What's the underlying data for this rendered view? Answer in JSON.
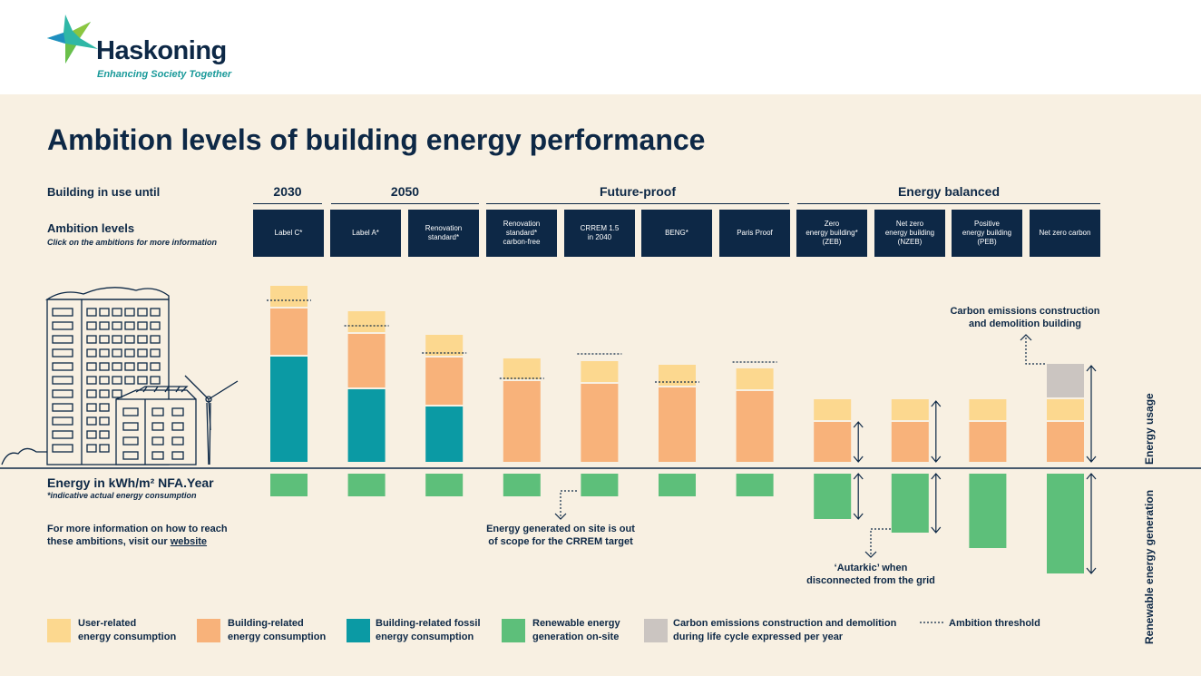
{
  "header": {
    "brand": "Haskoning",
    "tagline": "Enhancing Society Together"
  },
  "title": "Ambition levels of building energy performance",
  "row_labels": {
    "in_use": "Building in use until",
    "ambition": "Ambition levels",
    "ambition_sub": "Click on the ambitions for more information",
    "energy": "Energy in kWh/m² NFA.Year",
    "energy_sub": "*indicative actual energy consumption"
  },
  "info": {
    "text": "For more information on how to reach\nthese ambitions, visit our ",
    "link": "website"
  },
  "groups": [
    "2030",
    "2050",
    "Future-proof",
    "Energy balanced"
  ],
  "ambitions": [
    "Label C*",
    "Label A*",
    "Renovation\nstandard*",
    "Renovation\nstandard*\ncarbon-free",
    "CRREM 1.5\nin 2040",
    "BENG*",
    "Paris Proof",
    "Zero\nenergy building*\n(ZEB)",
    "Net zero\nenergy building\n(NZEB)",
    "Positive\nenergy building\n(PEB)",
    "Net zero carbon"
  ],
  "notes": {
    "carbon": "Carbon emissions construction\nand demolition building",
    "crrem": "Energy generated on site is out\nof scope for the CRREM target",
    "autarkic": "‘Autarkic’ when\ndisconnected from the grid"
  },
  "axis_labels": {
    "usage": "Energy usage",
    "generation": "Renewable energy generation"
  },
  "legend": [
    {
      "label": "User-related\nenergy consumption",
      "color": "#fcd88f"
    },
    {
      "label": "Building-related\nenergy consumption",
      "color": "#f8b27a"
    },
    {
      "label": "Building-related fossil\nenergy consumption",
      "color": "#0b9aa4"
    },
    {
      "label": "Renewable energy\ngeneration on-site",
      "color": "#5dbf7a"
    },
    {
      "label": "Carbon emissions construction and demolition\nduring life cycle expressed per year",
      "color": "#cbc5c1"
    },
    {
      "label": "Ambition threshold",
      "color": "#0d2846"
    }
  ],
  "chart_data": {
    "type": "bar",
    "categories": [
      "Label C*",
      "Label A*",
      "Renovation standard*",
      "Renovation standard* carbon-free",
      "CRREM 1.5 in 2040",
      "BENG*",
      "Paris Proof",
      "Zero energy building* (ZEB)",
      "Net zero energy building (NZEB)",
      "Positive energy building (PEB)",
      "Net zero carbon"
    ],
    "series": [
      {
        "name": "Building-related fossil energy consumption",
        "values": [
          116,
          80,
          61,
          0,
          0,
          0,
          0,
          0,
          0,
          0,
          0
        ]
      },
      {
        "name": "Building-related energy consumption",
        "values": [
          51,
          59,
          52,
          89,
          86,
          82,
          78,
          44,
          44,
          44,
          44
        ]
      },
      {
        "name": "User-related energy consumption",
        "values": [
          23,
          23,
          23,
          23,
          23,
          23,
          23,
          23,
          23,
          23,
          23
        ]
      },
      {
        "name": "Carbon emissions construction and demolition during life cycle expressed per year",
        "values": [
          0,
          0,
          0,
          0,
          0,
          0,
          0,
          0,
          0,
          0,
          37
        ]
      },
      {
        "name": "Renewable energy generation on-site",
        "values": [
          25,
          25,
          25,
          25,
          25,
          25,
          25,
          50,
          65,
          82,
          110
        ]
      }
    ],
    "ambition_threshold": [
      185,
      157,
      127,
      99,
      126,
      95,
      117
    ],
    "colors": {
      "user": "#fcd88f",
      "building": "#f8b27a",
      "fossil": "#0b9aa4",
      "renewable": "#5dbf7a",
      "carbon": "#cbc5c1",
      "ink": "#0d2846"
    }
  }
}
